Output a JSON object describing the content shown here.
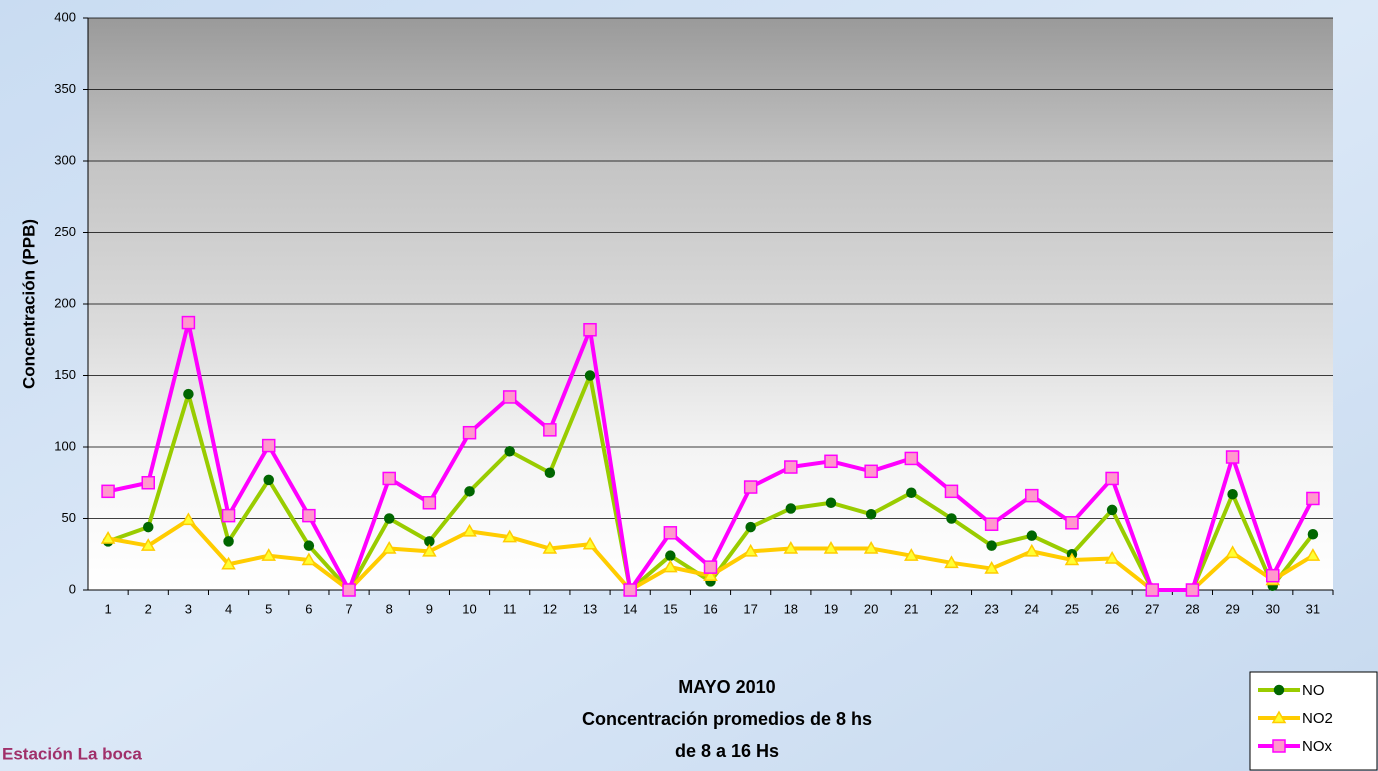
{
  "chart_data": {
    "type": "line",
    "title": "MAYO 2010",
    "subtitle": [
      "Concentración promedios de 8 hs",
      "de 8 a 16 Hs"
    ],
    "station": "Estación La boca",
    "y_label": "Concentración (PPB)",
    "categories": [
      "1",
      "2",
      "3",
      "4",
      "5",
      "6",
      "7",
      "8",
      "9",
      "10",
      "11",
      "12",
      "13",
      "14",
      "15",
      "16",
      "17",
      "18",
      "19",
      "20",
      "21",
      "22",
      "23",
      "24",
      "25",
      "26",
      "27",
      "28",
      "29",
      "30",
      "31"
    ],
    "series": [
      {
        "name": "NO",
        "color": "#99cc00",
        "marker": "circle",
        "marker_color": "#006600",
        "values": [
          34,
          44,
          137,
          34,
          77,
          31,
          0,
          50,
          34,
          69,
          97,
          82,
          150,
          0,
          24,
          6,
          44,
          57,
          61,
          53,
          68,
          50,
          31,
          38,
          25,
          56,
          0,
          0,
          67,
          3,
          39
        ]
      },
      {
        "name": "NO2",
        "color": "#ffcc00",
        "marker": "triangle",
        "marker_color": "#ffff33",
        "values": [
          36,
          31,
          49,
          18,
          24,
          21,
          0,
          29,
          27,
          41,
          37,
          29,
          32,
          0,
          16,
          10,
          27,
          29,
          29,
          29,
          24,
          19,
          15,
          27,
          21,
          22,
          0,
          0,
          26,
          7,
          24
        ]
      },
      {
        "name": "NOx",
        "color": "#ff00ff",
        "marker": "square",
        "marker_color": "#ff99cc",
        "values": [
          69,
          75,
          187,
          52,
          101,
          52,
          0,
          78,
          61,
          110,
          135,
          112,
          182,
          0,
          40,
          16,
          72,
          86,
          90,
          83,
          92,
          69,
          46,
          66,
          47,
          78,
          0,
          0,
          93,
          10,
          64
        ]
      }
    ],
    "ylim": [
      0,
      400
    ],
    "yticks": [
      0,
      50,
      100,
      150,
      200,
      250,
      300,
      350,
      400
    ],
    "grid": true
  }
}
